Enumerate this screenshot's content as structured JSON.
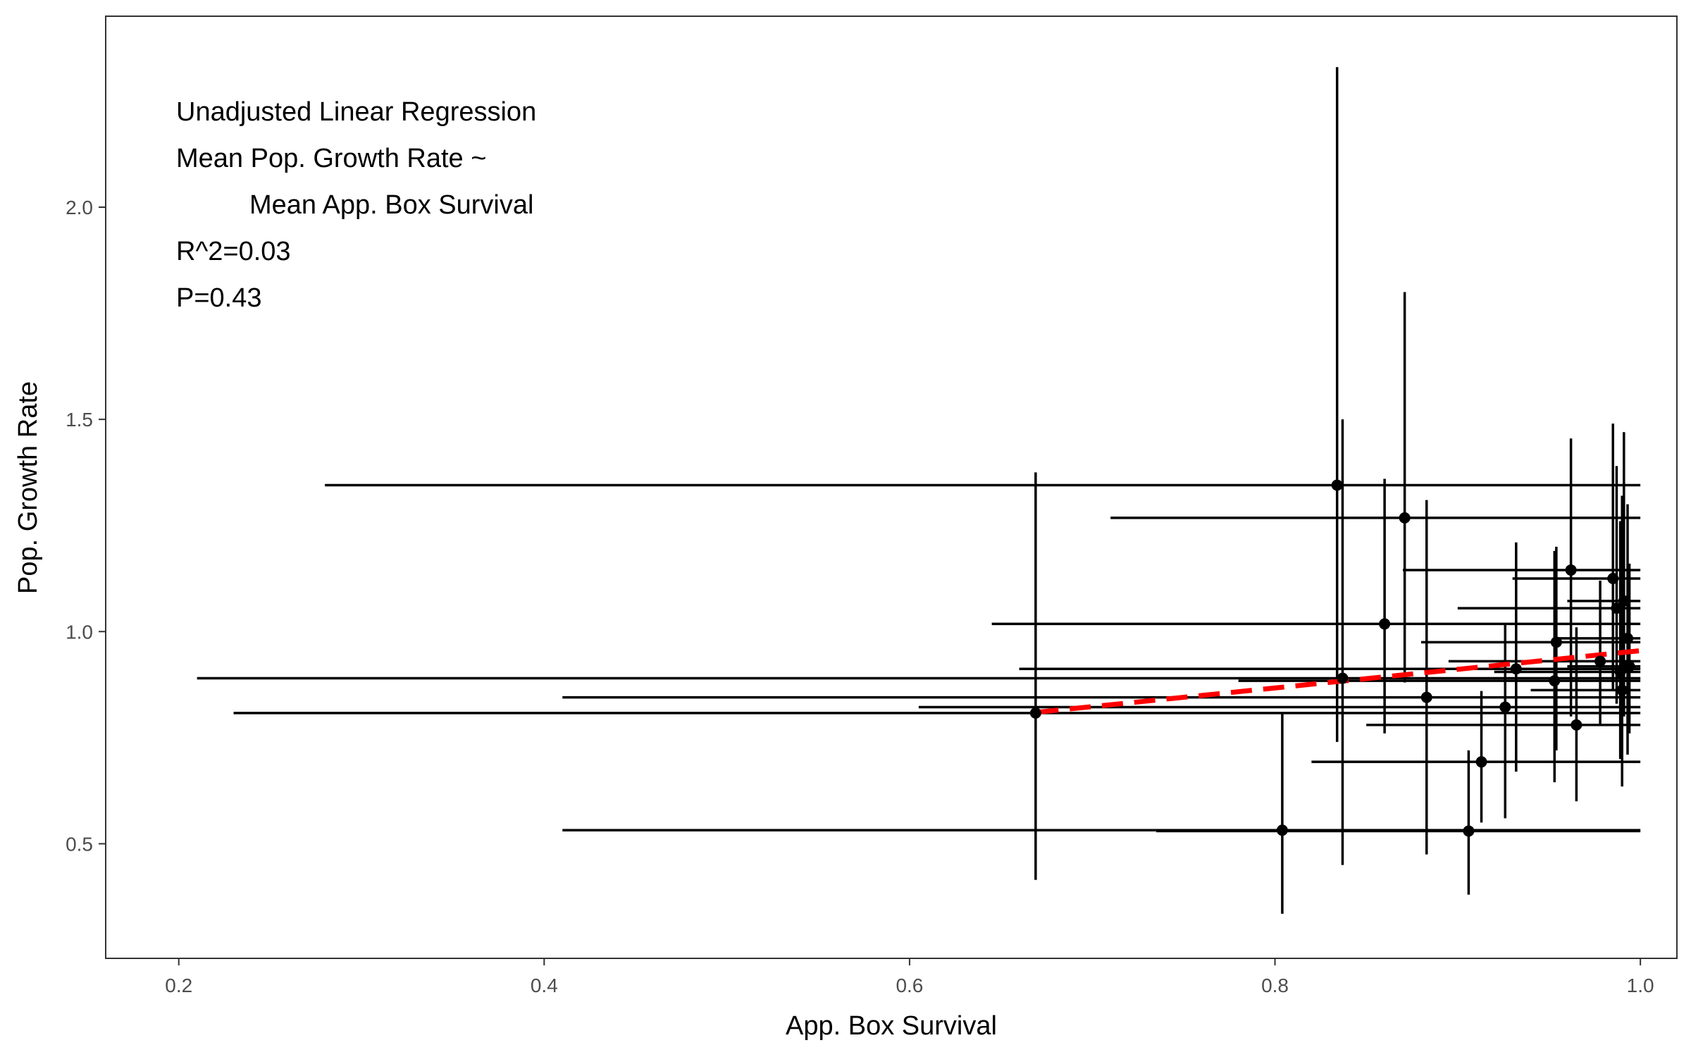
{
  "chart_data": {
    "type": "scatter",
    "xlabel": "App. Box Survival",
    "ylabel": "Pop. Growth Rate",
    "xlim": [
      0.16,
      1.02
    ],
    "ylim": [
      0.23,
      2.45
    ],
    "xticks": [
      0.2,
      0.4,
      0.6,
      0.8,
      1.0
    ],
    "xtick_labels": [
      "0.2",
      "0.4",
      "0.6",
      "0.8",
      "1.0"
    ],
    "yticks": [
      0.5,
      1.0,
      1.5,
      2.0
    ],
    "ytick_labels": [
      "0.5",
      "1.0",
      "1.5",
      "2.0"
    ],
    "grid": false,
    "annotation_lines": [
      "Unadjusted Linear Regression",
      "Mean Pop. Growth Rate ~",
      "Mean App. Box Survival",
      "R^2=0.03",
      "P=0.43"
    ],
    "colors": {
      "points": "#000000",
      "fit_line": "#ff0000"
    },
    "fit_line": {
      "style": "dashed",
      "x": [
        0.67,
        1.0
      ],
      "y": [
        0.81,
        0.955
      ]
    },
    "points": [
      {
        "x": 0.834,
        "y": 1.345,
        "xmin": 0.28,
        "xmax": 1.0,
        "ymin": 0.74,
        "ymax": 2.33
      },
      {
        "x": 0.871,
        "y": 1.268,
        "xmin": 0.71,
        "xmax": 1.0,
        "ymin": 0.88,
        "ymax": 1.8
      },
      {
        "x": 0.86,
        "y": 1.018,
        "xmin": 0.645,
        "xmax": 1.0,
        "ymin": 0.76,
        "ymax": 1.36
      },
      {
        "x": 0.837,
        "y": 0.89,
        "xmin": 0.21,
        "xmax": 1.0,
        "ymin": 0.45,
        "ymax": 1.5
      },
      {
        "x": 0.883,
        "y": 0.845,
        "xmin": 0.41,
        "xmax": 1.0,
        "ymin": 0.475,
        "ymax": 1.31
      },
      {
        "x": 0.669,
        "y": 0.808,
        "xmin": 0.23,
        "xmax": 1.0,
        "ymin": 0.415,
        "ymax": 1.375
      },
      {
        "x": 0.804,
        "y": 0.532,
        "xmin": 0.41,
        "xmax": 1.0,
        "ymin": 0.335,
        "ymax": 0.81
      },
      {
        "x": 0.906,
        "y": 0.53,
        "xmin": 0.735,
        "xmax": 1.0,
        "ymin": 0.38,
        "ymax": 0.72
      },
      {
        "x": 0.913,
        "y": 0.693,
        "xmin": 0.82,
        "xmax": 1.0,
        "ymin": 0.55,
        "ymax": 0.86
      },
      {
        "x": 0.926,
        "y": 0.822,
        "xmin": 0.605,
        "xmax": 1.0,
        "ymin": 0.56,
        "ymax": 1.02
      },
      {
        "x": 0.932,
        "y": 0.912,
        "xmin": 0.66,
        "xmax": 1.0,
        "ymin": 0.67,
        "ymax": 1.21
      },
      {
        "x": 0.953,
        "y": 0.884,
        "xmin": 0.78,
        "xmax": 1.0,
        "ymin": 0.645,
        "ymax": 1.19
      },
      {
        "x": 0.954,
        "y": 0.975,
        "xmin": 0.88,
        "xmax": 1.0,
        "ymin": 0.72,
        "ymax": 1.2
      },
      {
        "x": 0.962,
        "y": 1.145,
        "xmin": 0.87,
        "xmax": 1.0,
        "ymin": 0.8,
        "ymax": 1.455
      },
      {
        "x": 0.965,
        "y": 0.78,
        "xmin": 0.85,
        "xmax": 1.0,
        "ymin": 0.6,
        "ymax": 1.01
      },
      {
        "x": 0.978,
        "y": 0.93,
        "xmin": 0.895,
        "xmax": 1.0,
        "ymin": 0.78,
        "ymax": 1.12
      },
      {
        "x": 0.985,
        "y": 1.125,
        "xmin": 0.93,
        "xmax": 1.0,
        "ymin": 0.86,
        "ymax": 1.49
      },
      {
        "x": 0.987,
        "y": 1.055,
        "xmin": 0.9,
        "xmax": 1.0,
        "ymin": 0.83,
        "ymax": 1.39
      },
      {
        "x": 0.989,
        "y": 0.905,
        "xmin": 0.92,
        "xmax": 1.0,
        "ymin": 0.7,
        "ymax": 1.26
      },
      {
        "x": 0.99,
        "y": 0.862,
        "xmin": 0.94,
        "xmax": 1.0,
        "ymin": 0.635,
        "ymax": 1.32
      },
      {
        "x": 0.991,
        "y": 1.072,
        "xmin": 0.96,
        "xmax": 1.0,
        "ymin": 0.8,
        "ymax": 1.47
      },
      {
        "x": 0.993,
        "y": 0.984,
        "xmin": 0.955,
        "xmax": 1.0,
        "ymin": 0.71,
        "ymax": 1.3
      },
      {
        "x": 0.994,
        "y": 0.918,
        "xmin": 0.96,
        "xmax": 1.0,
        "ymin": 0.76,
        "ymax": 1.16
      }
    ]
  }
}
